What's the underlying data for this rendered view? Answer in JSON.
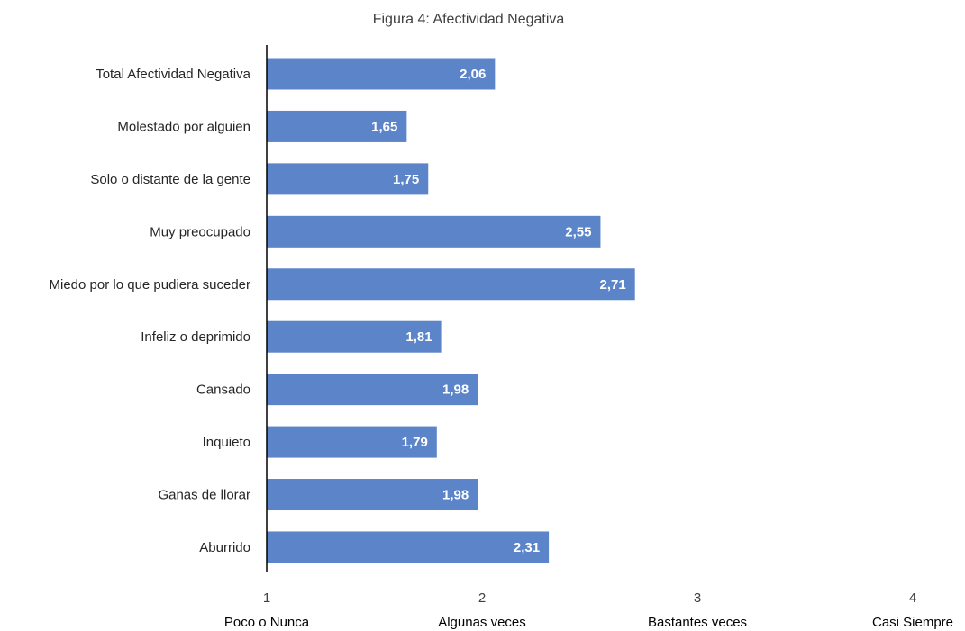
{
  "chart_data": {
    "type": "bar",
    "orientation": "horizontal",
    "title": "Figura 4: Afectividad Negativa",
    "categories": [
      "Total Afectividad Negativa",
      "Molestado por alguien",
      "Solo o distante de la gente",
      "Muy preocupado",
      "Miedo por lo que pudiera suceder",
      "Infeliz o deprimido",
      "Cansado",
      "Inquieto",
      "Ganas de llorar",
      "Aburrido"
    ],
    "values": [
      2.06,
      1.65,
      1.75,
      2.55,
      2.71,
      1.81,
      1.98,
      1.79,
      1.98,
      2.31
    ],
    "value_labels": [
      "2,06",
      "1,65",
      "1,75",
      "2,55",
      "2,71",
      "1,81",
      "1,98",
      "1,79",
      "1,98",
      "2,31"
    ],
    "xlim": [
      1,
      4
    ],
    "x_ticks": [
      {
        "value": 1,
        "label": "1",
        "description": "Poco o Nunca"
      },
      {
        "value": 2,
        "label": "2",
        "description": "Algunas veces"
      },
      {
        "value": 3,
        "label": "3",
        "description": "Bastantes veces"
      },
      {
        "value": 4,
        "label": "4",
        "description": "Casi Siempre"
      }
    ],
    "grid": false,
    "legend": "none",
    "bar_color": "#5b84c9",
    "axis_color": "#000000"
  }
}
